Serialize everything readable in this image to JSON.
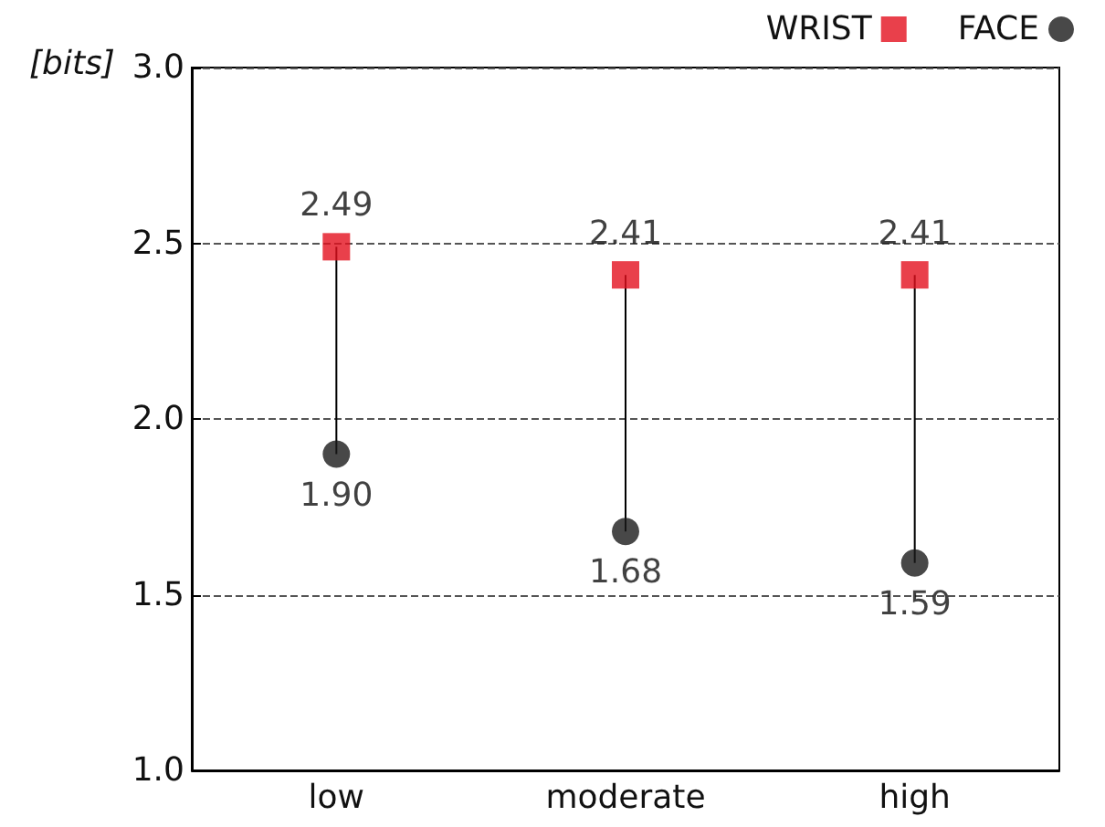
{
  "chart_data": {
    "type": "scatter",
    "ylabel": "[bits]",
    "categories": [
      "low",
      "moderate",
      "high"
    ],
    "series": [
      {
        "name": "WRIST",
        "color": "#e3101e",
        "marker": "square",
        "values": [
          2.49,
          2.41,
          2.41
        ],
        "value_labels": [
          "2.49",
          "2.41",
          "2.41"
        ]
      },
      {
        "name": "FACE",
        "color": "#1a1a1a",
        "marker": "circle",
        "values": [
          1.9,
          1.68,
          1.59
        ],
        "value_labels": [
          "1.90",
          "1.68",
          "1.59"
        ]
      }
    ],
    "ylim": [
      1.0,
      3.0
    ],
    "yticks": [
      {
        "value": 1,
        "label": "1.0"
      },
      {
        "value": 1.5,
        "label": "1.5"
      },
      {
        "value": 2,
        "label": "2.0"
      },
      {
        "value": 2.5,
        "label": "2.5"
      },
      {
        "value": 3,
        "label": "3.0"
      }
    ],
    "grid": "y",
    "legend": "top right"
  }
}
